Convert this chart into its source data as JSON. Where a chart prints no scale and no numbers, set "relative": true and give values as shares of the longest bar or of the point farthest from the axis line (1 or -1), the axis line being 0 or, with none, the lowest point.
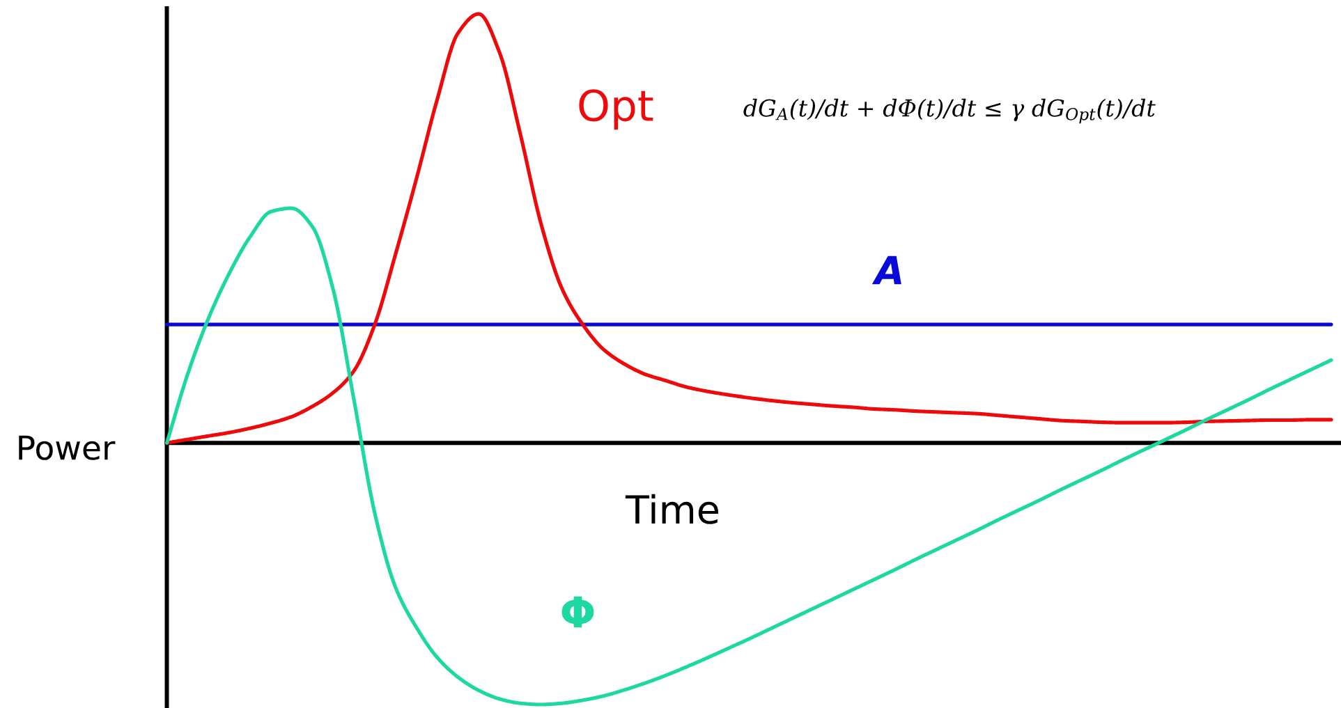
{
  "chart_data": {
    "type": "line",
    "relative": true,
    "line_style": "solid",
    "marker": "none",
    "xlabel": "Time",
    "ylabel": "Power",
    "annotations": [
      "dG$_{A}$(t)/dt + dΦ(t)/dt ≤ γ dG$_{Opt}$(t)/dt"
    ],
    "categories": [
      null,
      null,
      null,
      null,
      null,
      null,
      null,
      null,
      null,
      null,
      null,
      null,
      null,
      null,
      null,
      null,
      null,
      null,
      null,
      null,
      null,
      null,
      null,
      null,
      null,
      null,
      null,
      null,
      null,
      null,
      null,
      null,
      null,
      null,
      null,
      null,
      null,
      null,
      null,
      null,
      null,
      null,
      null,
      null,
      null,
      null,
      null,
      null,
      null,
      null,
      null,
      null,
      null,
      null,
      null,
      null,
      null
    ],
    "series": [
      {
        "name": "A",
        "color": "#0a0ad8",
        "values": [
          0.276,
          0.276,
          0.276,
          0.276,
          0.276,
          0.276,
          0.276,
          0.276,
          0.276,
          0.276,
          0.276,
          0.276,
          0.276,
          0.276,
          0.276,
          0.276,
          0.276,
          0.276,
          0.276,
          0.276,
          0.276,
          0.276,
          0.276,
          0.276,
          0.276,
          0.276,
          0.276,
          0.276,
          0.276,
          0.276,
          0.276,
          0.276,
          0.276,
          0.276,
          0.276,
          0.276,
          0.276,
          0.276,
          0.276,
          0.276,
          0.276,
          0.276,
          0.276,
          0.276,
          0.276,
          0.276,
          0.276,
          0.276,
          0.276,
          0.276,
          0.276,
          0.276,
          0.276,
          0.276,
          0.276,
          0.276,
          0.276
        ]
      },
      {
        "name": "Opt",
        "color": "#ee0a0a",
        "values": [
          0,
          0.008,
          0.016,
          0.024,
          0.034,
          0.046,
          0.061,
          0.085,
          0.117,
          0.168,
          0.276,
          0.44,
          0.615,
          0.8,
          0.955,
          1,
          0.91,
          0.72,
          0.51,
          0.36,
          0.276,
          0.218,
          0.184,
          0.16,
          0.145,
          0.13,
          0.12,
          0.112,
          0.105,
          0.099,
          0.094,
          0.09,
          0.086,
          0.083,
          0.079,
          0.077,
          0.074,
          0.072,
          0.07,
          0.068,
          0.064,
          0.06,
          0.056,
          0.052,
          0.05,
          0.048,
          0.047,
          0.047,
          0.047,
          0.048,
          0.05,
          0.051,
          0.052,
          0.053,
          0.053,
          0.054,
          0.054
        ]
      },
      {
        "name": "Φ",
        "color": "#1ed8a2",
        "values": [
          0,
          0.16,
          0.29,
          0.395,
          0.48,
          0.539,
          0.547,
          0.504,
          0.357,
          0.1,
          -0.164,
          -0.337,
          -0.43,
          -0.5,
          -0.546,
          -0.577,
          -0.597,
          -0.607,
          -0.61,
          -0.607,
          -0.6,
          -0.59,
          -0.576,
          -0.56,
          -0.542,
          -0.522,
          -0.501,
          -0.479,
          -0.457,
          -0.434,
          -0.411,
          -0.388,
          -0.365,
          -0.342,
          -0.319,
          -0.296,
          -0.272,
          -0.249,
          -0.226,
          -0.203,
          -0.179,
          -0.156,
          -0.133,
          -0.109,
          -0.086,
          -0.063,
          -0.039,
          -0.016,
          0.007,
          0.03,
          0.054,
          0.077,
          0.1,
          0.124,
          0.147,
          0.17,
          0.193
        ]
      }
    ]
  }
}
